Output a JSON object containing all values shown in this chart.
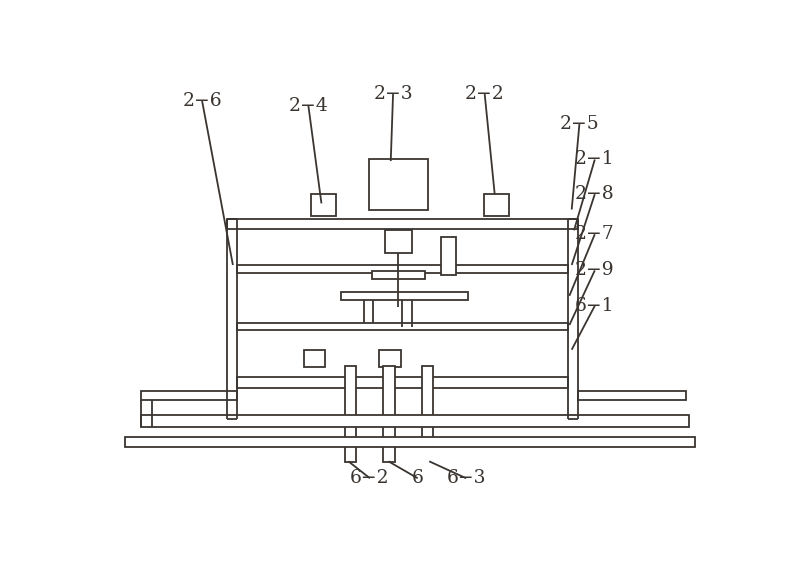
{
  "bg_color": "#ffffff",
  "lc": "#3a3530",
  "lw": 1.3,
  "fig_width": 8.0,
  "fig_height": 5.72
}
